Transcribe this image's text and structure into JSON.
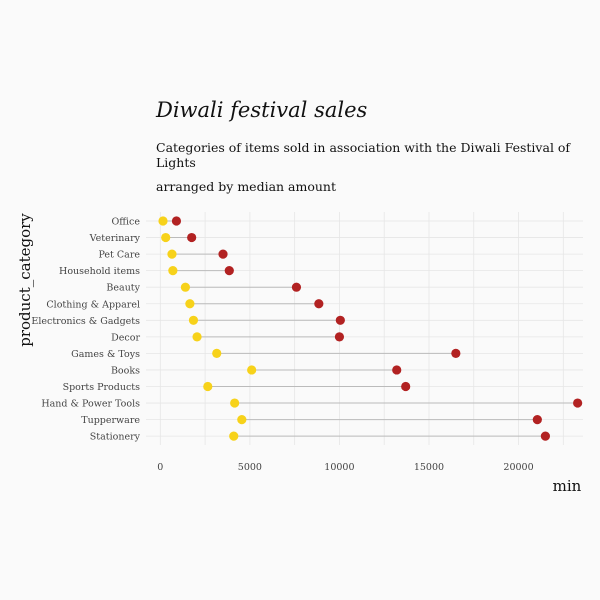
{
  "header": {
    "title": "Diwali festival sales",
    "subtitle": "Categories of items sold in association with the Diwali Festival of Lights",
    "subtitle2": "arranged by median amount"
  },
  "colors": {
    "min_point": "#f7d21a",
    "max_point": "#b22222",
    "segment": "#bbbbbb",
    "grid": "#e6e6e6",
    "background": "#fafafa"
  },
  "chart_data": {
    "type": "dumbbell",
    "xlabel": "min",
    "ylabel": "product_category",
    "xlim": [
      -800,
      23600
    ],
    "xticks": [
      0,
      5000,
      10000,
      15000,
      20000
    ],
    "grid": true,
    "categories": [
      "Office",
      "Veterinary",
      "Pet Care",
      "Household items",
      "Beauty",
      "Clothing & Apparel",
      "Electronics & Gadgets",
      "Decor",
      "Games & Toys",
      "Books",
      "Sports Products",
      "Hand & Power Tools",
      "Tupperware",
      "Stationery"
    ],
    "series": [
      {
        "values": [
          150,
          300,
          650,
          700,
          1400,
          1650,
          1850,
          2050,
          3150,
          5100,
          2650,
          4150,
          4550,
          4100
        ]
      },
      {
        "values": [
          900,
          1750,
          3500,
          3850,
          7600,
          8850,
          10050,
          10000,
          16500,
          13200,
          13700,
          23300,
          21050,
          21500
        ]
      }
    ]
  }
}
